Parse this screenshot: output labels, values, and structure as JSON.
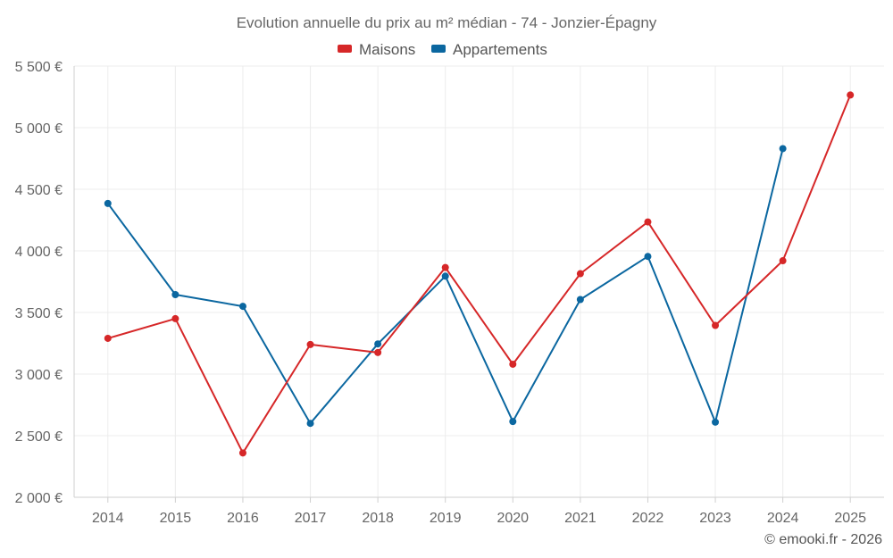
{
  "chart_data": {
    "type": "line",
    "title": "Evolution annuelle du prix au m² médian - 74 - Jonzier-Épagny",
    "categories": [
      "2014",
      "2015",
      "2016",
      "2017",
      "2018",
      "2019",
      "2020",
      "2021",
      "2022",
      "2023",
      "2024",
      "2025"
    ],
    "series": [
      {
        "name": "Maisons",
        "color": "#d62728",
        "values": [
          3290,
          3450,
          2360,
          3240,
          3175,
          3865,
          3080,
          3815,
          4235,
          3395,
          3920,
          5265
        ]
      },
      {
        "name": "Appartements",
        "color": "#0b67a0",
        "values": [
          4385,
          3645,
          3550,
          2600,
          3245,
          3795,
          2615,
          3605,
          3955,
          2610,
          4830,
          null
        ]
      }
    ],
    "ylim": [
      2000,
      5500
    ],
    "yticks": [
      2000,
      2500,
      3000,
      3500,
      4000,
      4500,
      5000,
      5500
    ],
    "ytick_labels": [
      "2 000 €",
      "2 500 €",
      "3 000 €",
      "3 500 €",
      "4 000 €",
      "4 500 €",
      "5 000 €",
      "5 500 €"
    ],
    "xlabel": "",
    "ylabel": "",
    "grid": true,
    "legend_position": "top-center"
  },
  "credit": "© emooki.fr - 2026"
}
